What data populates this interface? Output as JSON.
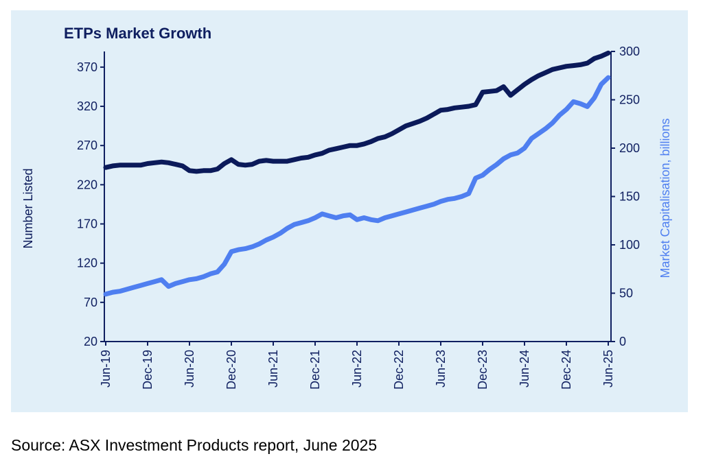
{
  "colors": {
    "panel_bg": "#e1eff8",
    "axis": "#0f1f60",
    "left_series": "#0b1a5a",
    "right_series": "#4f7ff0"
  },
  "footer": {
    "source": "Source: ASX Investment Products report, June 2025"
  },
  "chart_data": {
    "type": "line",
    "title": "ETPs Market Growth",
    "grid": false,
    "y_left": {
      "label": "Number Listed",
      "ylim": [
        20,
        390
      ],
      "ticks": [
        "20",
        "70",
        "120",
        "170",
        "220",
        "270",
        "320",
        "370"
      ]
    },
    "y_right": {
      "label": "Market Capitalisation, billions",
      "ylim": [
        0,
        300
      ],
      "ticks": [
        "0",
        "50",
        "100",
        "150",
        "200",
        "250",
        "300"
      ]
    },
    "x_tick_labels": [
      "Jun-19",
      "Dec-19",
      "Jun-20",
      "Dec-20",
      "Jun-21",
      "Dec-21",
      "Jun-22",
      "Dec-22",
      "Jun-23",
      "Dec-23",
      "Jun-24",
      "Dec-24",
      "Jun-25"
    ],
    "x": [
      "Jun-19",
      "Jul-19",
      "Aug-19",
      "Sep-19",
      "Oct-19",
      "Nov-19",
      "Dec-19",
      "Jan-20",
      "Feb-20",
      "Mar-20",
      "Apr-20",
      "May-20",
      "Jun-20",
      "Jul-20",
      "Aug-20",
      "Sep-20",
      "Oct-20",
      "Nov-20",
      "Dec-20",
      "Jan-21",
      "Feb-21",
      "Mar-21",
      "Apr-21",
      "May-21",
      "Jun-21",
      "Jul-21",
      "Aug-21",
      "Sep-21",
      "Oct-21",
      "Nov-21",
      "Dec-21",
      "Jan-22",
      "Feb-22",
      "Mar-22",
      "Apr-22",
      "May-22",
      "Jun-22",
      "Jul-22",
      "Aug-22",
      "Sep-22",
      "Oct-22",
      "Nov-22",
      "Dec-22",
      "Jan-23",
      "Feb-23",
      "Mar-23",
      "Apr-23",
      "May-23",
      "Jun-23",
      "Jul-23",
      "Aug-23",
      "Sep-23",
      "Oct-23",
      "Nov-23",
      "Dec-23",
      "Jan-24",
      "Feb-24",
      "Mar-24",
      "Apr-24",
      "May-24",
      "Jun-24",
      "Jul-24",
      "Aug-24",
      "Sep-24",
      "Oct-24",
      "Nov-24",
      "Dec-24",
      "Jan-25",
      "Feb-25",
      "Mar-25",
      "Apr-25",
      "May-25",
      "Jun-25"
    ],
    "series": [
      {
        "axis": "left",
        "values": [
          242,
          244,
          245,
          245,
          245,
          245,
          247,
          248,
          249,
          248,
          246,
          244,
          238,
          237,
          238,
          238,
          240,
          247,
          252,
          246,
          245,
          246,
          250,
          251,
          250,
          250,
          250,
          252,
          254,
          255,
          258,
          260,
          264,
          266,
          268,
          270,
          270,
          272,
          275,
          279,
          281,
          285,
          290,
          295,
          298,
          301,
          305,
          310,
          315,
          316,
          318,
          319,
          320,
          322,
          338,
          339,
          340,
          345,
          334,
          341,
          348,
          354,
          359,
          363,
          367,
          369,
          371,
          372,
          373,
          375,
          381,
          384,
          388
        ]
      },
      {
        "axis": "right",
        "values": [
          49,
          51,
          52,
          54,
          56,
          58,
          60,
          62,
          64,
          57,
          60,
          62,
          64,
          65,
          67,
          70,
          72,
          80,
          93,
          95,
          96,
          98,
          101,
          105,
          108,
          112,
          117,
          121,
          123,
          125,
          128,
          132,
          130,
          128,
          130,
          131,
          126,
          128,
          126,
          125,
          128,
          130,
          132,
          134,
          136,
          138,
          140,
          142,
          145,
          147,
          148,
          150,
          153,
          169,
          172,
          178,
          183,
          189,
          193,
          195,
          200,
          210,
          215,
          220,
          226,
          234,
          240,
          248,
          246,
          243,
          252,
          266,
          273
        ]
      }
    ]
  }
}
